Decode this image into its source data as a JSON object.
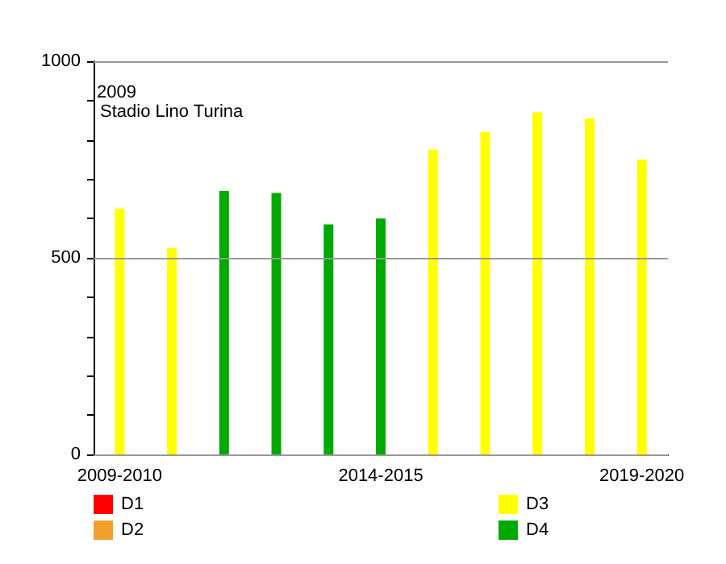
{
  "chart_data": {
    "type": "bar",
    "stacked": true,
    "categories": [
      "2009-2010",
      null,
      null,
      null,
      null,
      "2014-2015",
      null,
      null,
      null,
      null,
      "2019-2020"
    ],
    "series": [
      {
        "name": "D1",
        "color": "#ff0000",
        "values": [
          null,
          null,
          null,
          null,
          null,
          null,
          null,
          null,
          null,
          null,
          null
        ]
      },
      {
        "name": "D2",
        "color": "#f4a12c",
        "values": [
          null,
          null,
          null,
          null,
          null,
          null,
          null,
          null,
          null,
          null,
          null
        ]
      },
      {
        "name": "D3",
        "color": "#ffff00",
        "values": [
          625,
          525,
          null,
          null,
          null,
          null,
          775,
          820,
          870,
          855,
          750
        ]
      },
      {
        "name": "D4",
        "color": "#00aa00",
        "values": [
          null,
          null,
          670,
          665,
          585,
          600,
          null,
          null,
          null,
          null,
          null
        ]
      }
    ],
    "annotations": [
      "2009",
      "Stadio Lino Turina"
    ],
    "ylim": [
      0,
      1000
    ],
    "yticks": [
      0,
      {
        "value": 100,
        "label": null
      },
      {
        "value": 200,
        "label": null
      },
      {
        "value": 300,
        "label": null
      },
      {
        "value": 400,
        "label": null
      },
      500,
      {
        "value": 600,
        "label": null
      },
      {
        "value": 700,
        "label": null
      },
      {
        "value": 800,
        "label": null
      },
      {
        "value": 900,
        "label": null
      },
      1000
    ],
    "grid": true,
    "legend": "bottom"
  }
}
